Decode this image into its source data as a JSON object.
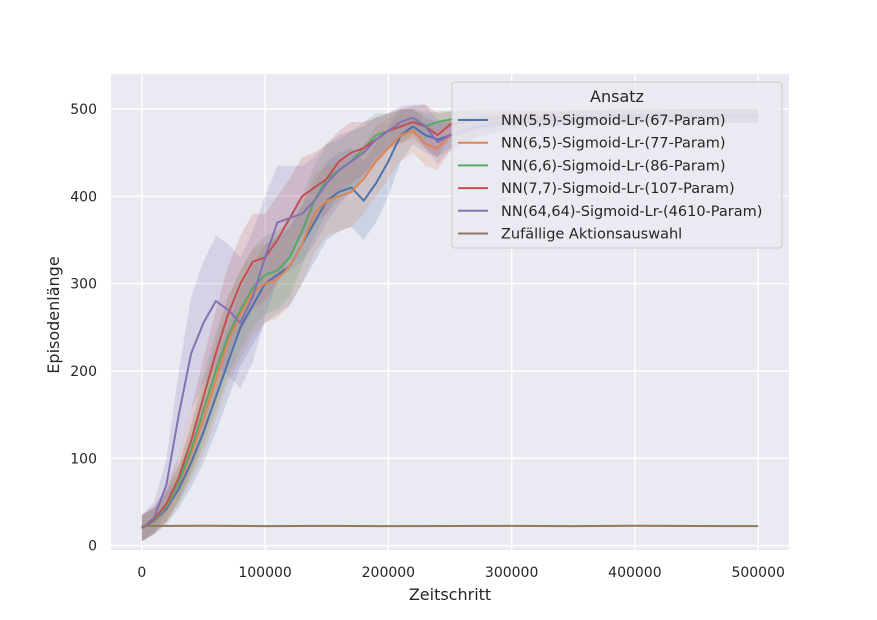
{
  "chart_data": {
    "type": "line",
    "xlabel": "Zeitschritt",
    "ylabel": "Episodenlänge",
    "xlim": [
      -25000,
      525000
    ],
    "ylim": [
      -5,
      540
    ],
    "xticks": [
      0,
      100000,
      200000,
      300000,
      400000,
      500000
    ],
    "xtick_labels": [
      "0",
      "100000",
      "200000",
      "300000",
      "400000",
      "500000"
    ],
    "yticks": [
      0,
      100,
      200,
      300,
      400,
      500
    ],
    "ytick_labels": [
      "0",
      "100",
      "200",
      "300",
      "400",
      "500"
    ],
    "grid": true,
    "background": "#eaeaf2",
    "legend": {
      "title": "Ansatz",
      "placement": "top-right"
    },
    "series": [
      {
        "name": "NN(5,5)-Sigmoid-Lr-(67-Param)",
        "color": "#4c72b0",
        "x": [
          0,
          10000,
          20000,
          30000,
          40000,
          50000,
          60000,
          70000,
          80000,
          90000,
          100000,
          110000,
          120000,
          130000,
          140000,
          150000,
          160000,
          170000,
          180000,
          190000,
          200000,
          210000,
          220000,
          230000,
          240000,
          250000,
          275000,
          300000,
          350000,
          400000,
          450000,
          500000
        ],
        "y": [
          20,
          28,
          42,
          65,
          95,
          130,
          170,
          210,
          250,
          275,
          300,
          310,
          320,
          345,
          370,
          395,
          405,
          410,
          395,
          415,
          440,
          470,
          480,
          470,
          465,
          470,
          480,
          485,
          488,
          490,
          492,
          492
        ],
        "band": [
          15,
          15,
          18,
          22,
          28,
          35,
          40,
          42,
          44,
          45,
          45,
          45,
          45,
          45,
          45,
          45,
          45,
          45,
          45,
          45,
          40,
          30,
          20,
          20,
          20,
          15,
          12,
          10,
          8,
          8,
          8,
          8
        ]
      },
      {
        "name": "NN(6,5)-Sigmoid-Lr-(77-Param)",
        "color": "#dd8452",
        "x": [
          0,
          10000,
          20000,
          30000,
          40000,
          50000,
          60000,
          70000,
          80000,
          90000,
          100000,
          110000,
          120000,
          130000,
          140000,
          150000,
          160000,
          170000,
          180000,
          190000,
          200000,
          210000,
          220000,
          230000,
          240000,
          250000,
          275000,
          300000,
          350000,
          400000,
          450000,
          500000
        ],
        "y": [
          20,
          28,
          45,
          70,
          105,
          145,
          190,
          235,
          265,
          290,
          300,
          305,
          320,
          345,
          380,
          395,
          400,
          405,
          420,
          440,
          455,
          470,
          475,
          460,
          455,
          470,
          482,
          487,
          490,
          491,
          492,
          492
        ],
        "band": [
          15,
          15,
          18,
          22,
          30,
          40,
          45,
          50,
          50,
          50,
          45,
          45,
          45,
          45,
          45,
          40,
          40,
          40,
          40,
          40,
          35,
          30,
          25,
          25,
          25,
          18,
          12,
          10,
          8,
          8,
          8,
          8
        ]
      },
      {
        "name": "NN(6,6)-Sigmoid-Lr-(86-Param)",
        "color": "#55a868",
        "x": [
          0,
          10000,
          20000,
          30000,
          40000,
          50000,
          60000,
          70000,
          80000,
          90000,
          100000,
          110000,
          120000,
          130000,
          140000,
          150000,
          160000,
          170000,
          180000,
          190000,
          200000,
          210000,
          220000,
          230000,
          240000,
          250000,
          275000,
          300000,
          350000,
          400000,
          450000,
          500000
        ],
        "y": [
          20,
          28,
          46,
          72,
          110,
          155,
          200,
          240,
          270,
          295,
          310,
          315,
          330,
          360,
          395,
          420,
          430,
          440,
          455,
          470,
          475,
          480,
          485,
          480,
          485,
          488,
          490,
          490,
          491,
          492,
          492,
          492
        ],
        "band": [
          15,
          15,
          18,
          22,
          30,
          40,
          45,
          45,
          45,
          45,
          45,
          45,
          45,
          40,
          40,
          40,
          35,
          35,
          30,
          25,
          20,
          18,
          15,
          15,
          12,
          10,
          10,
          8,
          8,
          8,
          8,
          8
        ]
      },
      {
        "name": "NN(7,7)-Sigmoid-Lr-(107-Param)",
        "color": "#c44e52",
        "x": [
          0,
          10000,
          20000,
          30000,
          40000,
          50000,
          60000,
          70000,
          80000,
          90000,
          100000,
          110000,
          120000,
          130000,
          140000,
          150000,
          160000,
          170000,
          180000,
          190000,
          200000,
          210000,
          220000,
          230000,
          240000,
          250000,
          275000,
          300000,
          350000,
          400000,
          450000,
          500000
        ],
        "y": [
          20,
          30,
          48,
          78,
          120,
          170,
          220,
          265,
          300,
          325,
          330,
          350,
          375,
          400,
          410,
          420,
          440,
          450,
          455,
          465,
          475,
          480,
          485,
          480,
          470,
          482,
          488,
          490,
          491,
          492,
          492,
          492
        ],
        "band": [
          15,
          15,
          20,
          25,
          35,
          45,
          50,
          55,
          55,
          55,
          50,
          50,
          45,
          45,
          40,
          40,
          35,
          35,
          30,
          25,
          20,
          20,
          18,
          25,
          25,
          15,
          12,
          10,
          8,
          8,
          8,
          8
        ]
      },
      {
        "name": "NN(64,64)-Sigmoid-Lr-(4610-Param)",
        "color": "#8172b3",
        "x": [
          0,
          10000,
          20000,
          30000,
          40000,
          50000,
          60000,
          70000,
          80000,
          90000,
          100000,
          110000,
          120000,
          130000,
          140000,
          150000,
          160000,
          170000,
          180000,
          190000,
          200000,
          210000,
          220000,
          230000,
          240000,
          250000,
          275000,
          300000,
          350000,
          400000,
          450000,
          500000
        ],
        "y": [
          20,
          32,
          70,
          150,
          220,
          255,
          280,
          270,
          255,
          285,
          330,
          370,
          375,
          380,
          395,
          415,
          430,
          440,
          450,
          465,
          475,
          485,
          490,
          480,
          462,
          470,
          482,
          488,
          490,
          491,
          492,
          492
        ],
        "band": [
          15,
          18,
          30,
          50,
          65,
          70,
          75,
          75,
          75,
          75,
          70,
          65,
          60,
          55,
          50,
          45,
          40,
          35,
          30,
          25,
          20,
          18,
          15,
          25,
          25,
          18,
          12,
          10,
          8,
          8,
          8,
          8
        ]
      },
      {
        "name": "Zufällige Aktionsauswahl",
        "color": "#937860",
        "x": [
          0,
          50000,
          100000,
          150000,
          200000,
          250000,
          300000,
          350000,
          400000,
          450000,
          500000
        ],
        "y": [
          22.5,
          22.7,
          22.4,
          22.6,
          22.3,
          22.5,
          22.6,
          22.4,
          22.7,
          22.5,
          22.4
        ],
        "band": [
          0.6,
          0.6,
          0.6,
          0.6,
          0.6,
          0.6,
          0.6,
          0.6,
          0.6,
          0.6,
          0.6
        ]
      }
    ]
  }
}
